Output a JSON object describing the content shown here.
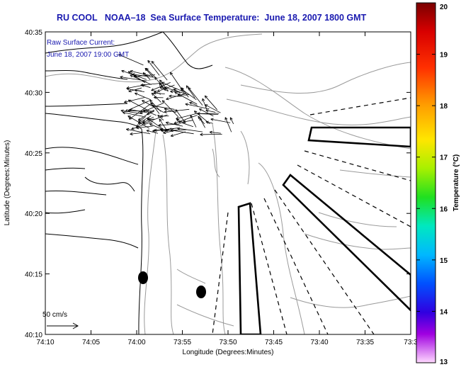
{
  "title": "RU COOL   NOAA–18  Sea Surface Temperature:  June 18, 2007 1800 GMT",
  "legend": {
    "line1": "Raw Surface Current:",
    "line2": "June 18, 2007 19:00 GMT",
    "scale_label": "50 cm/s"
  },
  "axes": {
    "xlabel": "Longitude (Degrees:Minutes)",
    "ylabel": "Latitude (Degrees:Minutes)",
    "x_ticks": [
      "74:10",
      "74:05",
      "74:00",
      "73:55",
      "73:50",
      "73:45",
      "73:40",
      "73:35",
      "73:3"
    ],
    "y_ticks": [
      "40:35",
      "40:30",
      "40:25",
      "40:20",
      "40:15",
      "40:10"
    ]
  },
  "colorbar": {
    "label": "Temperature (°C)",
    "ticks": [
      "20",
      "19",
      "18",
      "17",
      "16",
      "15",
      "14",
      "13"
    ],
    "min": 13,
    "max": 20
  },
  "colors": {
    "title": "#1a1ab0",
    "contour": "#9a9a9a",
    "coast": "#000000"
  }
}
